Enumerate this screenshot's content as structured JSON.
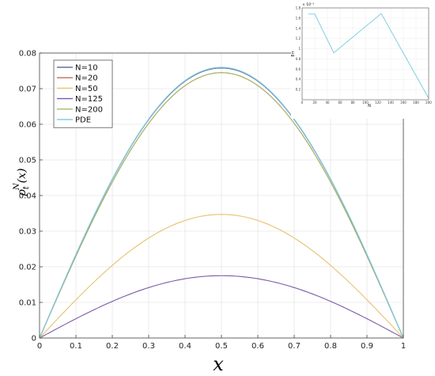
{
  "chart_data": [
    {
      "type": "line",
      "title": "",
      "xlabel": "x",
      "ylabel_main": "ρ",
      "ylabel_sup": "N",
      "ylabel_sub": "t",
      "ylabel_arg": "(x)",
      "xlim": [
        0,
        1
      ],
      "ylim": [
        0,
        0.08
      ],
      "x_ticks": [
        0,
        0.1,
        0.2,
        0.3,
        0.4,
        0.5,
        0.6,
        0.7,
        0.8,
        0.9,
        1
      ],
      "x_tick_labels": [
        "0",
        "0.1",
        "0.2",
        "0.3",
        "0.4",
        "0.5",
        "0.6",
        "0.7",
        "0.8",
        "0.9",
        "1"
      ],
      "y_ticks": [
        0,
        0.01,
        0.02,
        0.03,
        0.04,
        0.05,
        0.06,
        0.07,
        0.08
      ],
      "y_tick_labels": [
        "0",
        "0.01",
        "0.02",
        "0.03",
        "0.04",
        "0.05",
        "0.06",
        "0.07",
        "0.08"
      ],
      "grid": true,
      "legend_position": "top-left",
      "series": [
        {
          "name": "N=10",
          "color": "#6272a4",
          "peak": 0.0758
        },
        {
          "name": "N=20",
          "color": "#c0705a",
          "peak": 0.0745
        },
        {
          "name": "N=50",
          "color": "#e8c170",
          "peak": 0.0347
        },
        {
          "name": "N=125",
          "color": "#7b5aa6",
          "peak": 0.0175
        },
        {
          "name": "N=200",
          "color": "#a8b86a",
          "peak": 0.0745
        },
        {
          "name": "PDE",
          "color": "#80cfe0",
          "peak": 0.076
        }
      ]
    },
    {
      "type": "line",
      "title": "",
      "xlabel": "N",
      "ylabel": "Err",
      "exponent_label": "× 10⁻³",
      "xlim": [
        0,
        200
      ],
      "ylim": [
        0,
        1.8
      ],
      "x_ticks": [
        0,
        20,
        40,
        60,
        80,
        100,
        120,
        140,
        160,
        180,
        200
      ],
      "x_tick_labels": [
        "0",
        "20",
        "40",
        "60",
        "80",
        "100",
        "120",
        "140",
        "160",
        "180",
        "200"
      ],
      "y_ticks": [
        0.2,
        0.4,
        0.6,
        0.8,
        1.0,
        1.2,
        1.4,
        1.6,
        1.8
      ],
      "y_tick_labels": [
        "0.2",
        "0.4",
        "0.6",
        "0.8",
        "1",
        "1.2",
        "1.4",
        "1.6",
        "1.8"
      ],
      "grid": true,
      "series": [
        {
          "name": "",
          "color": "#80cfe0",
          "x": [
            10,
            20,
            50,
            125,
            200
          ],
          "y": [
            1.68,
            1.68,
            0.92,
            1.69,
            0.03
          ]
        }
      ]
    }
  ]
}
